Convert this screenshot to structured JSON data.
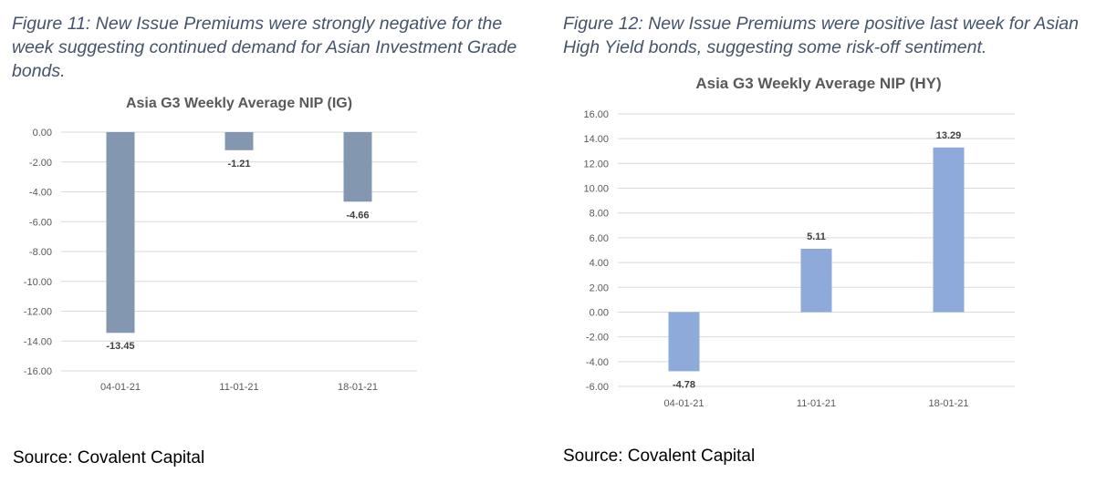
{
  "figures": [
    {
      "caption": "Figure 11: New Issue Premiums were strongly negative for the week suggesting continued demand for Asian Investment Grade bonds.",
      "source": "Source: Covalent Capital"
    },
    {
      "caption": "Figure 12: New Issue Premiums were positive last week for Asian High Yield bonds, suggesting some risk-off sentiment.",
      "source": "Source: Covalent Capital"
    }
  ],
  "chart_data": [
    {
      "type": "bar",
      "title": "Asia G3 Weekly Average NIP (IG)",
      "categories": [
        "04-01-21",
        "11-01-21",
        "18-01-21"
      ],
      "values": [
        -13.45,
        -1.21,
        -4.66
      ],
      "data_labels": [
        "-13.45",
        "-1.21",
        "-4.66"
      ],
      "ylim": [
        -16,
        0
      ],
      "yticks": [
        0,
        -2,
        -4,
        -6,
        -8,
        -10,
        -12,
        -14,
        -16
      ],
      "ytick_labels": [
        "0.00",
        "-2.00",
        "-4.00",
        "-6.00",
        "-8.00",
        "-10.00",
        "-12.00",
        "-14.00",
        "-16.00"
      ],
      "grid": true,
      "bar_color": "#8497b0"
    },
    {
      "type": "bar",
      "title": "Asia G3 Weekly Average NIP (HY)",
      "categories": [
        "04-01-21",
        "11-01-21",
        "18-01-21"
      ],
      "values": [
        -4.78,
        5.11,
        13.29
      ],
      "data_labels": [
        "-4.78",
        "5.11",
        "13.29"
      ],
      "ylim": [
        -6,
        16
      ],
      "yticks": [
        16,
        14,
        12,
        10,
        8,
        6,
        4,
        2,
        0,
        -2,
        -4,
        -6
      ],
      "ytick_labels": [
        "16.00",
        "14.00",
        "12.00",
        "10.00",
        "8.00",
        "6.00",
        "4.00",
        "2.00",
        "0.00",
        "-2.00",
        "-4.00",
        "-6.00"
      ],
      "grid": true,
      "bar_color": "#8eaadb"
    }
  ]
}
